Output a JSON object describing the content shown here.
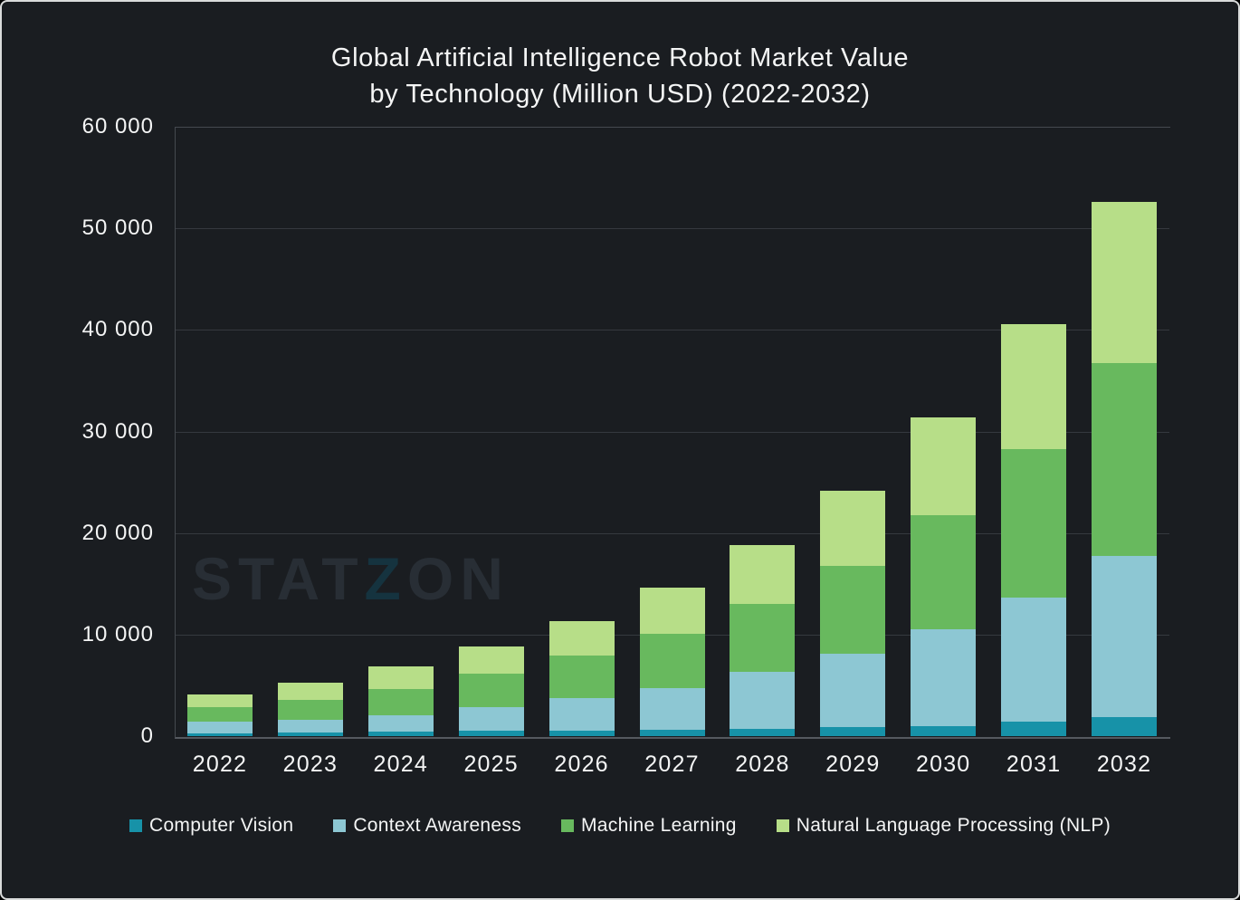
{
  "title": {
    "line1": "Global Artificial Intelligence Robot Market Value",
    "line2": "by Technology (Million USD) (2022-2032)"
  },
  "watermark": {
    "left": "STAT",
    "mark": "Z",
    "right": "ON"
  },
  "colors": {
    "background": "#1a1d21",
    "text": "#f4f5f5",
    "gridline": "#35393f",
    "axis": "#55595f",
    "frame_border": "#d9dbdb",
    "watermark_text": "#282e35",
    "watermark_mark": "#15333f"
  },
  "chart_data": {
    "type": "bar",
    "stacked": true,
    "title": "Global Artificial Intelligence Robot Market Value by Technology (Million USD) (2022-2032)",
    "xlabel": "",
    "ylabel": "",
    "categories": [
      "2022",
      "2023",
      "2024",
      "2025",
      "2026",
      "2027",
      "2028",
      "2029",
      "2030",
      "2031",
      "2032"
    ],
    "series": [
      {
        "name": "Computer Vision",
        "color": "#1792a8",
        "values": [
          300,
          400,
          450,
          500,
          550,
          600,
          700,
          850,
          1000,
          1450,
          1870
        ]
      },
      {
        "name": "Context Awareness",
        "color": "#8dc7d3",
        "values": [
          1130,
          1200,
          1600,
          2350,
          3150,
          4150,
          5600,
          7250,
          9500,
          12200,
          15830
        ]
      },
      {
        "name": "Machine Learning",
        "color": "#68b95e",
        "values": [
          1420,
          1950,
          2600,
          3300,
          4200,
          5300,
          6700,
          8700,
          11250,
          14600,
          19000
        ]
      },
      {
        "name": "Natural Language Processing (NLP)",
        "color": "#b7de88",
        "values": [
          1250,
          1750,
          2200,
          2700,
          3400,
          4550,
          5800,
          7400,
          9600,
          12350,
          15900
        ]
      }
    ],
    "totals": [
      4100,
      5300,
      6850,
      8850,
      11300,
      14600,
      18800,
      24200,
      31350,
      40600,
      52600
    ],
    "ylim": [
      0,
      60000
    ],
    "yticks": [
      0,
      10000,
      20000,
      30000,
      40000,
      50000,
      60000
    ],
    "ytick_labels": [
      "0",
      "10 000",
      "20 000",
      "30 000",
      "40 000",
      "50 000",
      "60 000"
    ],
    "grid": "horizontal",
    "legend_position": "bottom"
  }
}
